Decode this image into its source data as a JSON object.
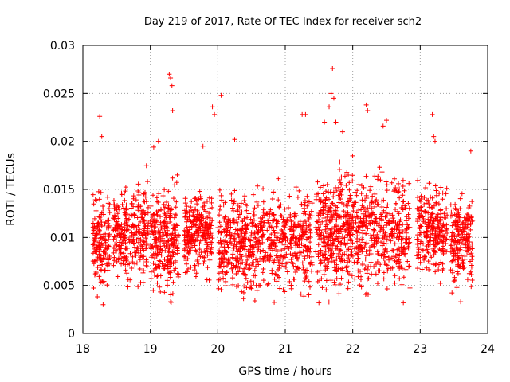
{
  "chart_data": {
    "type": "scatter",
    "title": "Day 219 of 2017, Rate Of TEC Index for receiver sch2",
    "xlabel": "GPS time / hours",
    "ylabel": "ROTI / TECUs",
    "xlim": [
      18,
      24
    ],
    "ylim": [
      0,
      0.03
    ],
    "x_ticks": [
      18,
      19,
      20,
      21,
      22,
      23,
      24
    ],
    "x_tick_labels": [
      "18",
      "19",
      "20",
      "21",
      "22",
      "23",
      "24"
    ],
    "y_ticks": [
      0,
      0.005,
      0.01,
      0.015,
      0.02,
      0.025,
      0.03
    ],
    "y_tick_labels": [
      "0",
      "0.005",
      "0.01",
      "0.015",
      "0.02",
      "0.025",
      "0.03"
    ],
    "grid": true,
    "marker": "+",
    "marker_color": "#ff0000",
    "clusters": [
      {
        "x_start": 18.15,
        "x_end": 18.4,
        "y_center": 0.0095,
        "y_spread": 0.0028,
        "count": 160
      },
      {
        "x_start": 18.45,
        "x_end": 18.97,
        "y_center": 0.0105,
        "y_spread": 0.0027,
        "count": 300
      },
      {
        "x_start": 19.0,
        "x_end": 19.42,
        "y_center": 0.0095,
        "y_spread": 0.003,
        "count": 260
      },
      {
        "x_start": 19.5,
        "x_end": 19.92,
        "y_center": 0.0105,
        "y_spread": 0.0024,
        "count": 260
      },
      {
        "x_start": 20.0,
        "x_end": 20.6,
        "y_center": 0.0095,
        "y_spread": 0.003,
        "count": 340
      },
      {
        "x_start": 20.6,
        "x_end": 21.4,
        "y_center": 0.0095,
        "y_spread": 0.0028,
        "count": 380
      },
      {
        "x_start": 21.45,
        "x_end": 22.0,
        "y_center": 0.0105,
        "y_spread": 0.0035,
        "count": 360
      },
      {
        "x_start": 22.0,
        "x_end": 22.85,
        "y_center": 0.0105,
        "y_spread": 0.0032,
        "count": 420
      },
      {
        "x_start": 22.95,
        "x_end": 23.4,
        "y_center": 0.0105,
        "y_spread": 0.0026,
        "count": 240
      },
      {
        "x_start": 23.45,
        "x_end": 23.78,
        "y_center": 0.0095,
        "y_spread": 0.0026,
        "count": 200
      }
    ],
    "outliers": [
      {
        "x": 18.25,
        "y": 0.0226
      },
      {
        "x": 18.28,
        "y": 0.0205
      },
      {
        "x": 18.3,
        "y": 0.003
      },
      {
        "x": 19.05,
        "y": 0.0194
      },
      {
        "x": 19.12,
        "y": 0.02
      },
      {
        "x": 19.28,
        "y": 0.027
      },
      {
        "x": 19.3,
        "y": 0.0266
      },
      {
        "x": 19.32,
        "y": 0.0258
      },
      {
        "x": 19.33,
        "y": 0.0232
      },
      {
        "x": 19.3,
        "y": 0.0033
      },
      {
        "x": 19.78,
        "y": 0.0195
      },
      {
        "x": 19.92,
        "y": 0.0236
      },
      {
        "x": 19.95,
        "y": 0.0228
      },
      {
        "x": 20.05,
        "y": 0.0248
      },
      {
        "x": 20.25,
        "y": 0.0202
      },
      {
        "x": 20.55,
        "y": 0.0034
      },
      {
        "x": 21.25,
        "y": 0.0228
      },
      {
        "x": 21.3,
        "y": 0.0228
      },
      {
        "x": 21.58,
        "y": 0.022
      },
      {
        "x": 21.65,
        "y": 0.0236
      },
      {
        "x": 21.7,
        "y": 0.0276
      },
      {
        "x": 21.68,
        "y": 0.025
      },
      {
        "x": 21.72,
        "y": 0.0245
      },
      {
        "x": 21.75,
        "y": 0.022
      },
      {
        "x": 21.85,
        "y": 0.021
      },
      {
        "x": 22.2,
        "y": 0.0238
      },
      {
        "x": 22.22,
        "y": 0.0232
      },
      {
        "x": 22.45,
        "y": 0.0216
      },
      {
        "x": 22.5,
        "y": 0.0222
      },
      {
        "x": 22.75,
        "y": 0.0032
      },
      {
        "x": 23.18,
        "y": 0.0228
      },
      {
        "x": 23.2,
        "y": 0.0205
      },
      {
        "x": 23.22,
        "y": 0.02
      },
      {
        "x": 23.6,
        "y": 0.0033
      },
      {
        "x": 23.75,
        "y": 0.019
      }
    ]
  }
}
